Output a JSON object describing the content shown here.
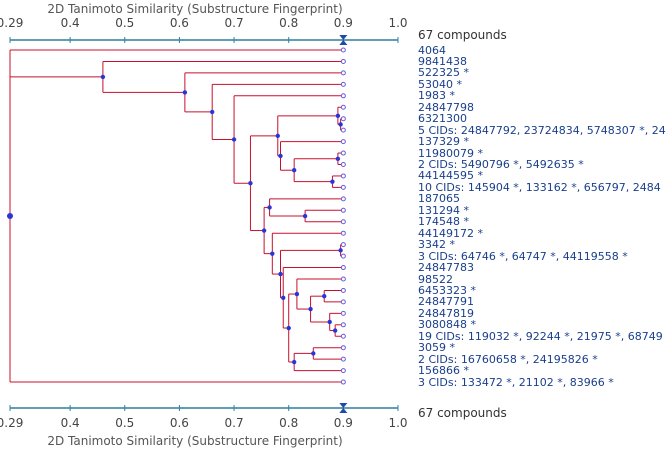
{
  "axis": {
    "title": "2D Tanimoto Similarity (Substructure Fingerprint)",
    "ticks": [
      "0.29",
      "0.4",
      "0.5",
      "0.6",
      "0.7",
      "0.8",
      "0.9",
      "1.0"
    ],
    "min": 0.29,
    "max": 1.0,
    "cutoff": 0.9
  },
  "compound_count": "67 compounds",
  "colors": {
    "link": "#c8102e",
    "node": "#2b35d6",
    "leaf": "#6a5ad6",
    "axis": "#2f7fa0",
    "label": "#1a3f8c"
  },
  "leaves": [
    "4064",
    "9841438",
    "522325 *",
    "53040 *",
    "1983 *",
    "24847798",
    "6321300",
    "5 CIDs: 24847792, 23724834, 5748307 *, 24",
    "137329 *",
    "11980079 *",
    "2 CIDs: 5490796 *, 5492635 *",
    "44144595 *",
    "10 CIDs: 145904 *, 133162 *, 656797, 2484",
    "187065",
    "131294 *",
    "174548 *",
    "44149172 *",
    "3342 *",
    "3 CIDs: 64746 *, 64747 *, 44119558 *",
    "24847783",
    "98522",
    "6453323 *",
    "24847791",
    "24847819",
    "3080848 *",
    "19 CIDs: 119032 *, 92244 *, 21975 *, 68749",
    "3059 *",
    "2 CIDs: 16760658 *, 24195826 *",
    "156866 *",
    "3 CIDs: 133472 *, 21102 *, 83966 *"
  ],
  "tree": {
    "s": 0.29,
    "c": [
      {
        "l": 0
      },
      {
        "s": 0.46,
        "c": [
          {
            "l": 1
          },
          {
            "s": 0.61,
            "c": [
              {
                "l": 2
              },
              {
                "s": 0.66,
                "c": [
                  {
                    "l": 3
                  },
                  {
                    "s": 0.7,
                    "c": [
                      {
                        "l": 4
                      },
                      {
                        "s": 0.73,
                        "c": [
                          {
                            "s": 0.78,
                            "c": [
                              {
                                "s": 0.89,
                                "c": [
                                  {
                                    "l": 5
                                  },
                                  {
                                    "s": 0.895,
                                    "c": [
                                      {
                                        "l": 6
                                      },
                                      {
                                        "l": 7
                                      }
                                    ]
                                  }
                                ]
                              },
                              {
                                "s": 0.785,
                                "c": [
                                  {
                                    "l": 8
                                  },
                                  {
                                    "s": 0.81,
                                    "c": [
                                      {
                                        "s": 0.89,
                                        "c": [
                                          {
                                            "l": 9
                                          },
                                          {
                                            "l": 10
                                          }
                                        ]
                                      },
                                      {
                                        "s": 0.88,
                                        "c": [
                                          {
                                            "l": 11
                                          },
                                          {
                                            "l": 12
                                          }
                                        ]
                                      }
                                    ]
                                  }
                                ]
                              }
                            ]
                          },
                          {
                            "s": 0.755,
                            "c": [
                              {
                                "s": 0.765,
                                "c": [
                                  {
                                    "l": 13
                                  },
                                  {
                                    "s": 0.83,
                                    "c": [
                                      {
                                        "l": 14
                                      },
                                      {
                                        "l": 15
                                      }
                                    ]
                                  }
                                ]
                              },
                              {
                                "s": 0.77,
                                "c": [
                                  {
                                    "l": 16
                                  },
                                  {
                                    "s": 0.785,
                                    "c": [
                                      {
                                        "s": 0.895,
                                        "c": [
                                          {
                                            "l": 17
                                          },
                                          {
                                            "l": 18
                                          }
                                        ]
                                      },
                                      {
                                        "s": 0.79,
                                        "c": [
                                          {
                                            "l": 19
                                          },
                                          {
                                            "s": 0.8,
                                            "c": [
                                              {
                                                "s": 0.815,
                                                "c": [
                                                  {
                                                    "l": 20
                                                  },
                                                  {
                                                    "s": 0.84,
                                                    "c": [
                                                      {
                                                        "s": 0.865,
                                                        "c": [
                                                          {
                                                            "l": 21
                                                          },
                                                          {
                                                            "l": 22
                                                          }
                                                        ]
                                                      },
                                                      {
                                                        "s": 0.875,
                                                        "c": [
                                                          {
                                                            "l": 23
                                                          },
                                                          {
                                                            "s": 0.885,
                                                            "c": [
                                                              {
                                                                "l": 24
                                                              },
                                                              {
                                                                "l": 25
                                                              }
                                                            ]
                                                          }
                                                        ]
                                                      }
                                                    ]
                                                  }
                                                ]
                                              },
                                              {
                                                "s": 0.81,
                                                "c": [
                                                  {
                                                    "s": 0.845,
                                                    "c": [
                                                      {
                                                        "l": 26
                                                      },
                                                      {
                                                        "l": 27
                                                      }
                                                    ]
                                                  },
                                                  {
                                                    "l": 28
                                                  }
                                                ]
                                              }
                                            ]
                                          }
                                        ]
                                      }
                                    ]
                                  }
                                ]
                              }
                            ]
                          }
                        ]
                      }
                    ]
                  }
                ]
              }
            ]
          }
        ]
      },
      {
        "l": 29
      }
    ]
  }
}
